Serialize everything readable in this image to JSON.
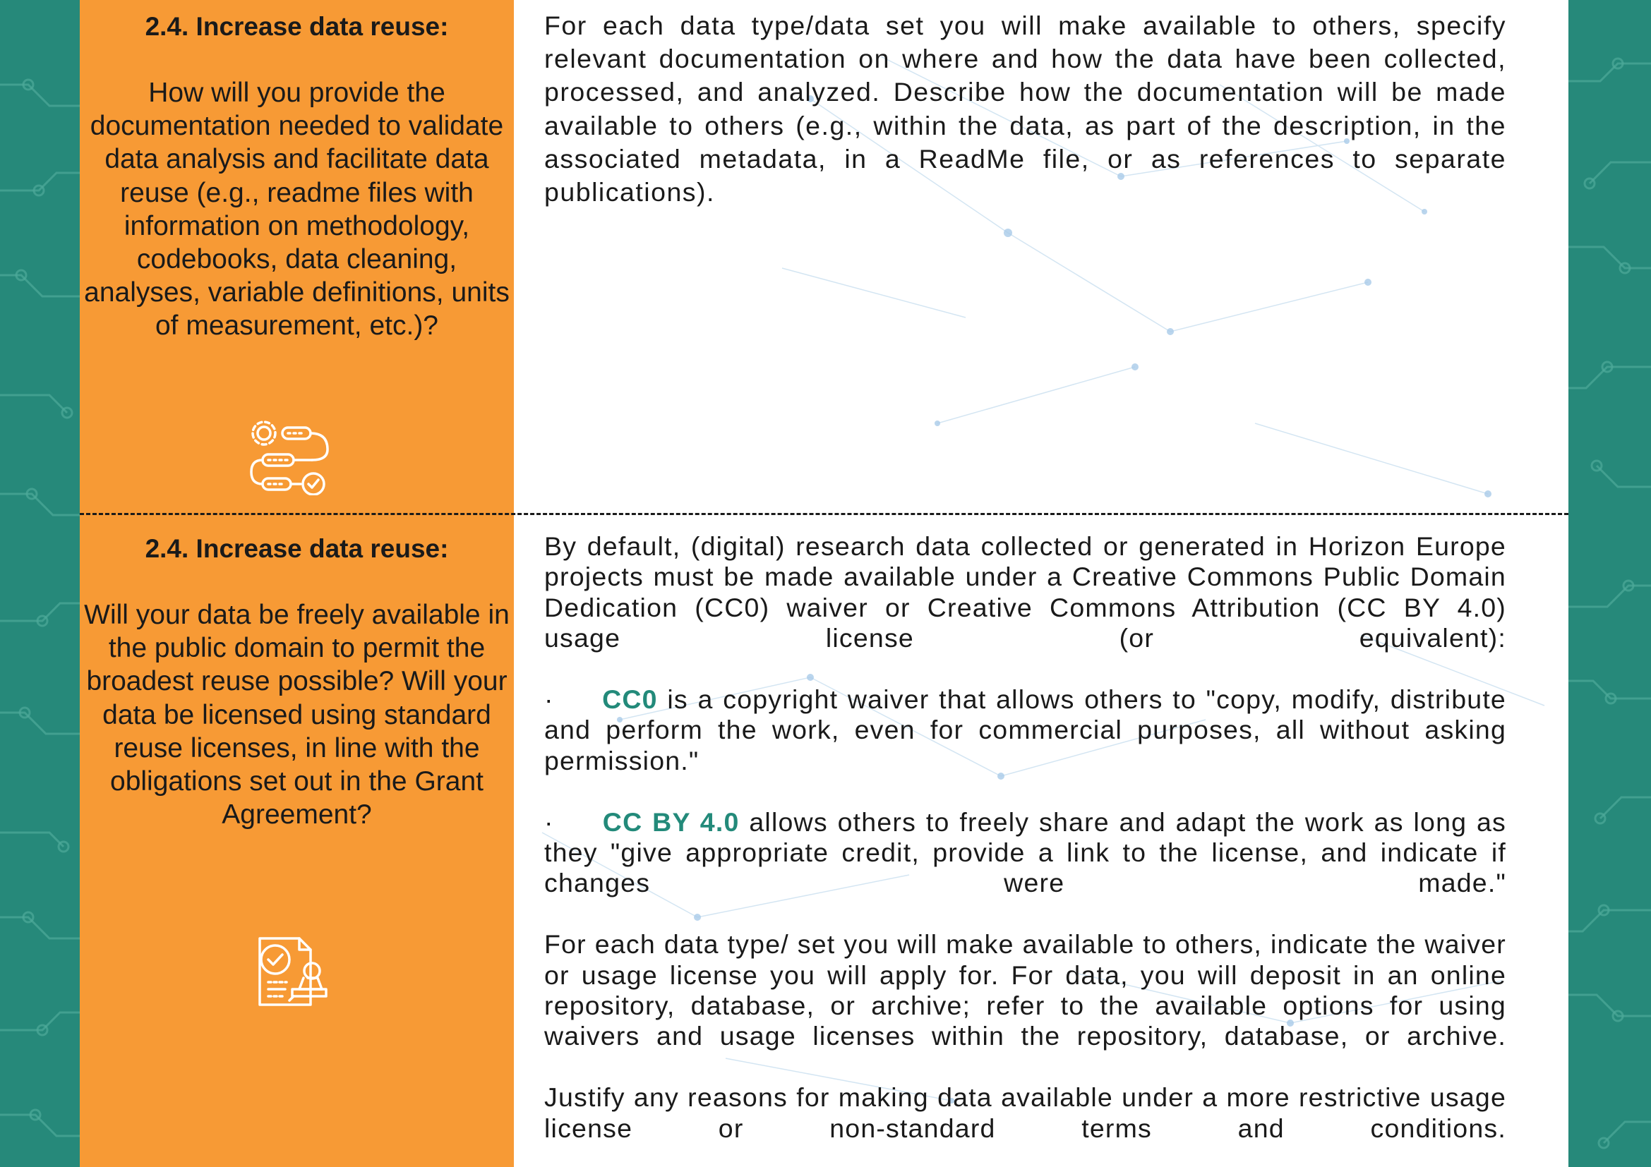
{
  "colors": {
    "teal": "#26897a",
    "orange": "#f79a35",
    "accent_text": "#238a7a",
    "text": "#1a1a1a"
  },
  "sections": [
    {
      "title": "2.4. Increase data reuse:",
      "question": "How will you provide the documentation needed to validate data analysis and facilitate data reuse (e.g., readme files with information on methodology, codebooks, data cleaning, analyses, variable definitions, units of measurement, etc.)?",
      "icon": "workflow-gears-icon",
      "answer": "For each data type/data set you will make available to others, specify relevant documentation on where and how the data have been collected, processed, and analyzed. Describe how the documentation will be made available to others (e.g., within the data, as part of the description, in the associated metadata, in a ReadMe file, or as references to separate publications)."
    },
    {
      "title": "2.4. Increase data reuse:",
      "question": "Will your data be freely available in the public domain to permit the broadest reuse possible? Will your data be licensed using standard reuse licenses, in line with the obligations set out in the Grant Agreement?",
      "icon": "license-document-icon",
      "answer_intro": "By default, (digital) research data collected or generated in Horizon Europe projects must be made available under a Creative Commons Public Domain Dedication (CC0) waiver or Creative Commons Attribution (CC BY 4.0) usage license (or equivalent):",
      "bullets": [
        {
          "marker": "·",
          "term": "CC0",
          "text": "is a copyright waiver that allows others to \"copy, modify, distribute and perform the work, even for commercial purposes, all without asking permission.\""
        },
        {
          "marker": "·",
          "term": "CC BY 4.0",
          "text": "allows others to freely share and adapt the work as long as they \"give appropriate credit, provide a link to the license, and indicate if changes were made.\""
        }
      ],
      "answer_waiver": "For each data type/ set you will make available to others, indicate the waiver or usage license you will apply for. For data, you will deposit in an online repository, database, or archive; refer to the available options for using waivers and usage licenses within the repository, database, or archive.",
      "answer_justify": "Justify any reasons for making data available under a more restrictive usage license or non-standard terms and conditions."
    }
  ]
}
